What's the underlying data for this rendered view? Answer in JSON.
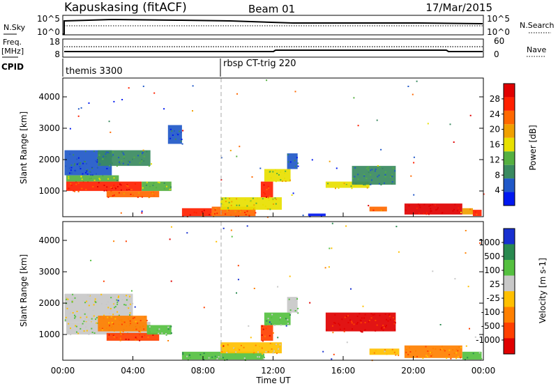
{
  "chart_data": {
    "type": "heatmap",
    "header": {
      "station": "Kapuskasing (fitACF)",
      "beam": "Beam 01",
      "date": "17/Mar/2015"
    },
    "sky_panel": {
      "left_label": "N.Sky",
      "left_ticks": [
        "10^5",
        "10^0"
      ],
      "right_label": "N.Search",
      "right_ticks": [
        "10^5",
        "10^0"
      ]
    },
    "freq_panel": {
      "left_label": "Freq.",
      "left_unit": "[MHz]",
      "left_ticks": [
        "18",
        "8"
      ],
      "right_label": "Nave",
      "right_ticks": [
        "60",
        "0"
      ]
    },
    "cpid_panel": {
      "label": "CPID",
      "modes": [
        {
          "start_h": 0.0,
          "name": "themis 3300"
        },
        {
          "start_h": 9.0,
          "name": "rbsp CT-trig 220"
        }
      ]
    },
    "x_axis": {
      "label": "Time UT",
      "range_h": [
        0,
        24
      ],
      "tick_labels": [
        "00:00",
        "04:00",
        "08:00",
        "12:00",
        "16:00",
        "20:00",
        "00:00"
      ]
    },
    "y_axis": {
      "label": "Slant Range [km]",
      "range": [
        180,
        4600
      ],
      "tick_labels": [
        "1000",
        "2000",
        "3000",
        "4000"
      ]
    },
    "power_colorbar": {
      "label": "Power [dB]",
      "tick_labels": [
        "4",
        "8",
        "12",
        "16",
        "20",
        "24",
        "28"
      ],
      "colors": [
        "#0018f0",
        "#2058c8",
        "#3a8a60",
        "#55b040",
        "#e8e000",
        "#f0a000",
        "#ff6800",
        "#ff2000",
        "#e00000"
      ]
    },
    "velocity_colorbar": {
      "label": "Velocity [m s-1]",
      "tick_labels": [
        "1000",
        "500",
        "100",
        "25",
        "-25",
        "-100",
        "-500",
        "-1000"
      ],
      "colors": [
        "#1830d0",
        "#2a8a50",
        "#55c040",
        "#c8c8c8",
        "#ffc000",
        "#ff8000",
        "#ff4000",
        "#e00000"
      ]
    },
    "power_regions": [
      {
        "t0": 0.1,
        "t1": 2.8,
        "r0": 1500,
        "r1": 2300,
        "level": 1
      },
      {
        "t0": 0.2,
        "t1": 3.2,
        "r0": 1300,
        "r1": 1500,
        "level": 3
      },
      {
        "t0": 0.2,
        "t1": 4.5,
        "r0": 1000,
        "r1": 1300,
        "level": 7
      },
      {
        "t0": 2.0,
        "t1": 5.0,
        "r0": 1800,
        "r1": 2300,
        "level": 2
      },
      {
        "t0": 4.5,
        "t1": 6.2,
        "r0": 1000,
        "r1": 1300,
        "level": 3
      },
      {
        "t0": 2.5,
        "t1": 5.5,
        "r0": 800,
        "r1": 1000,
        "level": 6
      },
      {
        "t0": 6.0,
        "t1": 6.8,
        "r0": 2500,
        "r1": 3100,
        "level": 1
      },
      {
        "t0": 6.8,
        "t1": 8.5,
        "r0": 200,
        "r1": 450,
        "level": 7
      },
      {
        "t0": 8.5,
        "t1": 11.0,
        "r0": 200,
        "r1": 500,
        "level": 6
      },
      {
        "t0": 9.0,
        "t1": 12.5,
        "r0": 400,
        "r1": 800,
        "level": 4
      },
      {
        "t0": 11.3,
        "t1": 12.0,
        "r0": 800,
        "r1": 1300,
        "level": 7
      },
      {
        "t0": 11.5,
        "t1": 13.0,
        "r0": 1300,
        "r1": 1700,
        "level": 4
      },
      {
        "t0": 12.8,
        "t1": 13.4,
        "r0": 1700,
        "r1": 2200,
        "level": 1
      },
      {
        "t0": 15.0,
        "t1": 17.5,
        "r0": 1100,
        "r1": 1300,
        "level": 4
      },
      {
        "t0": 17.5,
        "t1": 18.5,
        "r0": 350,
        "r1": 500,
        "level": 6
      },
      {
        "t0": 19.5,
        "t1": 22.8,
        "r0": 250,
        "r1": 600,
        "level": 8
      },
      {
        "t0": 22.8,
        "t1": 23.4,
        "r0": 250,
        "r1": 450,
        "level": 5
      },
      {
        "t0": 23.4,
        "t1": 23.9,
        "r0": 200,
        "r1": 400,
        "level": 7
      },
      {
        "t0": 16.5,
        "t1": 19.0,
        "r0": 1200,
        "r1": 1800,
        "level": 2
      },
      {
        "t0": 14.0,
        "t1": 15.0,
        "r0": 200,
        "r1": 280,
        "level": 0
      }
    ],
    "velocity_regions": [
      {
        "t0": 0.1,
        "t1": 4.0,
        "r0": 1400,
        "r1": 2300,
        "level": 3
      },
      {
        "t0": 0.2,
        "t1": 5.0,
        "r0": 1000,
        "r1": 1400,
        "level": 3
      },
      {
        "t0": 2.0,
        "t1": 4.8,
        "r0": 1100,
        "r1": 1600,
        "level": 5
      },
      {
        "t0": 2.5,
        "t1": 5.5,
        "r0": 800,
        "r1": 1050,
        "level": 6
      },
      {
        "t0": 4.8,
        "t1": 6.2,
        "r0": 1000,
        "r1": 1300,
        "level": 2
      },
      {
        "t0": 6.8,
        "t1": 11.5,
        "r0": 200,
        "r1": 450,
        "level": 2
      },
      {
        "t0": 9.0,
        "t1": 12.5,
        "r0": 400,
        "r1": 750,
        "level": 4
      },
      {
        "t0": 11.3,
        "t1": 12.0,
        "r0": 800,
        "r1": 1300,
        "level": 6
      },
      {
        "t0": 11.5,
        "t1": 13.0,
        "r0": 1300,
        "r1": 1700,
        "level": 2
      },
      {
        "t0": 12.8,
        "t1": 13.4,
        "r0": 1700,
        "r1": 2200,
        "level": 3
      },
      {
        "t0": 15.0,
        "t1": 19.0,
        "r0": 1100,
        "r1": 1700,
        "level": 7
      },
      {
        "t0": 17.5,
        "t1": 19.2,
        "r0": 350,
        "r1": 550,
        "level": 4
      },
      {
        "t0": 19.5,
        "t1": 22.8,
        "r0": 250,
        "r1": 650,
        "level": 5
      },
      {
        "t0": 22.8,
        "t1": 23.9,
        "r0": 200,
        "r1": 450,
        "level": 2
      }
    ]
  }
}
